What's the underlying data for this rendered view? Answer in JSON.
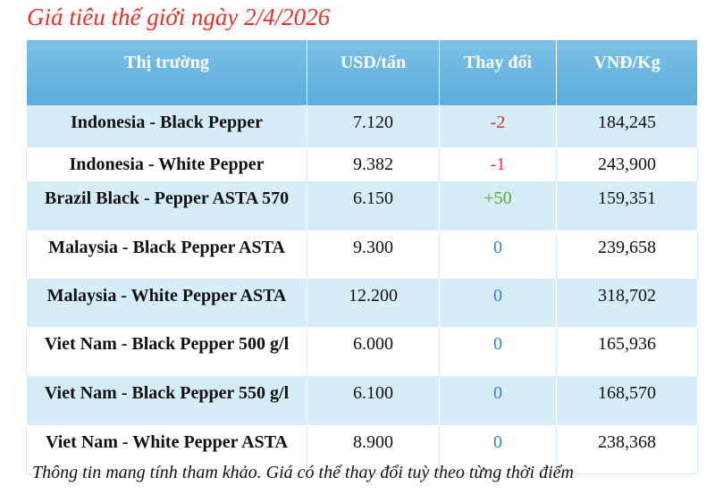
{
  "title": "Giá tiêu thế giới ngày 2/4/2026",
  "table": {
    "headers": [
      "Thị trường",
      "USD/tấn",
      "Thay đổi",
      "VNĐ/Kg"
    ],
    "rows": [
      [
        "Indonesia - Black Pepper",
        "7.120",
        "-2",
        "184,245"
      ],
      [
        "Indonesia - White Pepper",
        "9.382",
        "-1",
        "243,900"
      ],
      [
        "Brazil Black - Pepper ASTA 570",
        "6.150",
        "+50",
        "159,351"
      ],
      [
        "Malaysia - Black Pepper ASTA",
        "9.300",
        "0",
        "239,658"
      ],
      [
        "Malaysia - White Pepper ASTA",
        "12.200",
        "0",
        "318,702"
      ],
      [
        "Viet Nam - Black Pepper 500 g/l",
        "6.000",
        "0",
        "165,936"
      ],
      [
        "Viet Nam - Black Pepper 550 g/l",
        "6.100",
        "0",
        "168,570"
      ],
      [
        "Viet Nam - White Pepper ASTA",
        "8.900",
        "0",
        "238,368"
      ]
    ]
  },
  "footnote": "Thông tin mang tính tham khảo. Giá có thể thay đổi tuỳ theo từng thời điểm"
}
